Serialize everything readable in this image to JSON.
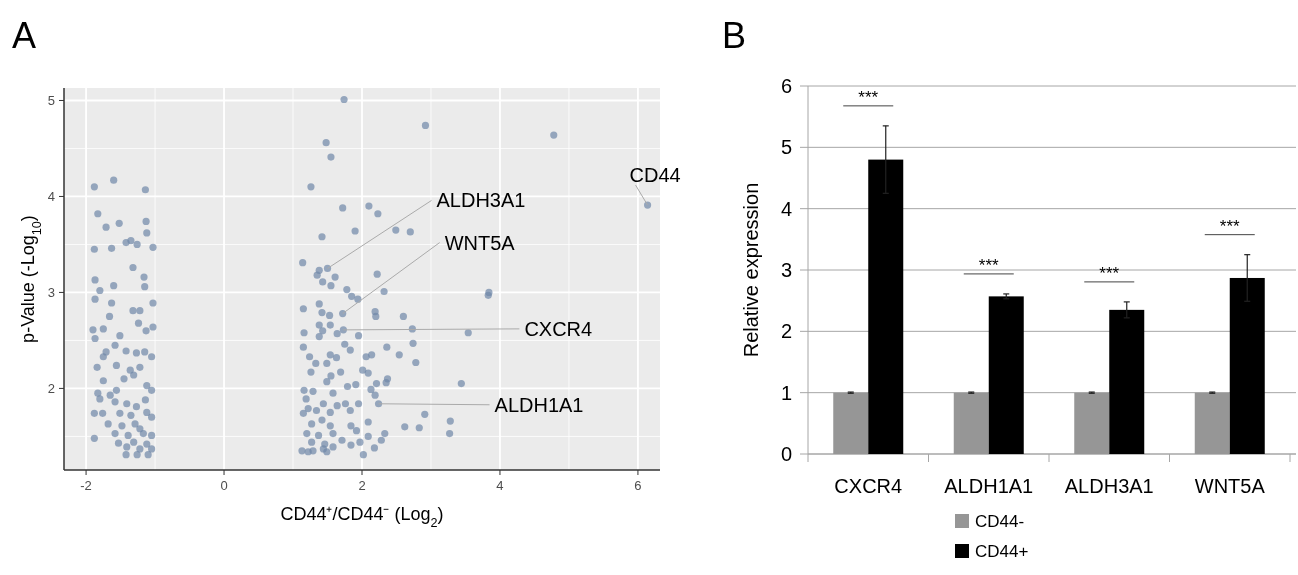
{
  "chart_data": [
    {
      "type": "scatter",
      "title": "A",
      "xlabel": "CD44⁺/CD44⁻ (Log$_{2}$)",
      "ylabel": "p-Value (-Log$_{10}$)",
      "color": "#6f87a8",
      "marker": "circle",
      "grid": true,
      "xlim": [
        -2.32,
        6.32
      ],
      "ylim": [
        1.15,
        5.13
      ],
      "xticks": [
        -2,
        0,
        2,
        4,
        6
      ],
      "yticks": [
        2,
        3,
        4,
        5
      ],
      "x": [
        -1.88,
        -1.6,
        -1.14,
        -1.83,
        -1.71,
        -1.52,
        -1.13,
        -1.12,
        -1.88,
        -1.63,
        -1.42,
        -1.35,
        -1.26,
        -1.03,
        -1.32,
        -1.87,
        -1.6,
        -1.16,
        -1.8,
        -1.15,
        -1.87,
        -1.63,
        -1.32,
        -1.22,
        -1.03,
        -1.66,
        -1.24,
        -1.9,
        -1.75,
        -1.13,
        -1.03,
        -1.87,
        -1.51,
        -1.58,
        -1.71,
        -1.42,
        -1.27,
        -1.15,
        -1.05,
        -1.75,
        -1.56,
        -1.84,
        -1.36,
        -1.22,
        -1.75,
        -1.45,
        -1.31,
        -1.12,
        -1.05,
        -1.83,
        -1.65,
        -1.56,
        -1.8,
        -1.58,
        -1.41,
        -1.14,
        -1.27,
        -1.88,
        -1.76,
        -1.51,
        -1.35,
        -1.12,
        -1.05,
        -1.68,
        -1.48,
        -1.29,
        -1.22,
        -1.17,
        -1.58,
        -1.88,
        -1.39,
        -1.05,
        -1.53,
        -1.31,
        -1.12,
        -1.41,
        -1.22,
        -1.05,
        -1.42,
        -1.26,
        -1.1,
        1.74,
        2.92,
        4.78,
        1.48,
        1.55,
        1.26,
        1.72,
        2.1,
        2.23,
        1.9,
        2.49,
        2.7,
        1.42,
        1.14,
        1.5,
        1.38,
        1.35,
        1.61,
        1.43,
        1.55,
        2.22,
        1.78,
        1.85,
        1.94,
        2.32,
        3.84,
        3.83,
        1.15,
        1.38,
        1.42,
        1.53,
        1.72,
        2.19,
        2.2,
        2.6,
        1.16,
        1.38,
        1.43,
        1.54,
        1.73,
        1.64,
        1.38,
        1.95,
        2.73,
        3.54,
        1.15,
        1.75,
        2.74,
        2.36,
        1.83,
        1.24,
        1.54,
        1.63,
        2.06,
        2.14,
        2.54,
        1.33,
        1.49,
        2.01,
        2.78,
        1.26,
        1.69,
        2.09,
        1.55,
        1.49,
        2.37,
        2.35,
        2.21,
        1.91,
        1.79,
        3.44,
        1.16,
        1.29,
        1.58,
        2.13,
        2.19,
        1.19,
        1.44,
        1.64,
        1.76,
        1.95,
        2.24,
        1.22,
        1.34,
        1.83,
        1.15,
        1.54,
        2.91,
        1.42,
        1.27,
        2.09,
        3.28,
        1.54,
        1.84,
        2.62,
        2.83,
        1.92,
        1.2,
        2.33,
        3.27,
        1.37,
        1.58,
        2.09,
        1.71,
        1.97,
        2.28,
        1.27,
        1.46,
        1.84,
        2.18,
        1.13,
        1.29,
        1.44,
        1.58,
        2.02,
        1.49,
        1.22,
        6.14
      ],
      "values": [
        4.1,
        4.17,
        4.07,
        3.82,
        3.68,
        3.72,
        3.74,
        3.62,
        3.45,
        3.46,
        3.52,
        3.54,
        3.5,
        3.47,
        3.26,
        3.13,
        3.07,
        3.16,
        3.02,
        3.06,
        2.93,
        2.89,
        2.81,
        2.81,
        2.89,
        2.75,
        2.68,
        2.61,
        2.62,
        2.6,
        2.64,
        2.52,
        2.55,
        2.45,
        2.38,
        2.39,
        2.37,
        2.38,
        2.33,
        2.33,
        2.24,
        2.22,
        2.19,
        2.22,
        2.08,
        2.1,
        2.14,
        2.03,
        1.98,
        1.95,
        1.93,
        1.98,
        1.89,
        1.86,
        1.84,
        1.88,
        1.81,
        1.74,
        1.74,
        1.74,
        1.72,
        1.75,
        1.7,
        1.63,
        1.61,
        1.63,
        1.58,
        1.53,
        1.53,
        1.48,
        1.51,
        1.51,
        1.43,
        1.44,
        1.42,
        1.39,
        1.37,
        1.37,
        1.31,
        1.31,
        1.31,
        5.01,
        4.74,
        4.64,
        4.56,
        4.41,
        4.1,
        3.88,
        3.9,
        3.82,
        3.64,
        3.65,
        3.63,
        3.58,
        3.31,
        3.25,
        3.23,
        3.18,
        3.16,
        3.11,
        3.07,
        3.19,
        3.03,
        2.96,
        2.93,
        3.01,
        3,
        2.97,
        2.83,
        2.88,
        2.79,
        2.76,
        2.78,
        2.8,
        2.75,
        2.75,
        2.58,
        2.66,
        2.6,
        2.66,
        2.61,
        2.57,
        2.54,
        2.55,
        2.62,
        2.58,
        2.43,
        2.46,
        2.47,
        2.43,
        2.4,
        2.33,
        2.35,
        2.32,
        2.33,
        2.35,
        2.35,
        2.26,
        2.26,
        2.19,
        2.27,
        2.17,
        2.17,
        2.16,
        2.13,
        2.07,
        2.1,
        2.06,
        2.05,
        2.04,
        2.02,
        2.05,
        1.98,
        1.97,
        1.95,
        1.99,
        1.93,
        1.89,
        1.84,
        1.82,
        1.84,
        1.84,
        1.84,
        1.79,
        1.77,
        1.77,
        1.74,
        1.75,
        1.73,
        1.67,
        1.63,
        1.65,
        1.66,
        1.61,
        1.61,
        1.6,
        1.59,
        1.56,
        1.53,
        1.53,
        1.53,
        1.51,
        1.53,
        1.5,
        1.46,
        1.44,
        1.46,
        1.44,
        1.42,
        1.41,
        1.38,
        1.35,
        1.35,
        1.37,
        1.39,
        1.31,
        1.34,
        1.34,
        3.91
      ],
      "annotations": [
        {
          "text": "CD44",
          "x": 6.14,
          "y": 3.91
        },
        {
          "text": "ALDH3A1",
          "x": 1.5,
          "y": 3.25
        },
        {
          "text": "WNT5A",
          "x": 1.72,
          "y": 2.78
        },
        {
          "text": "CXCR4",
          "x": 1.73,
          "y": 2.61
        },
        {
          "text": "ALDH1A1",
          "x": 2.24,
          "y": 1.84
        }
      ]
    },
    {
      "type": "bar",
      "title": "B",
      "ylabel": "Relative expression",
      "categories": [
        "CXCR4",
        "ALDH1A1",
        "ALDH3A1",
        "WNT5A"
      ],
      "ylim": [
        0,
        6
      ],
      "yticks": [
        0,
        1,
        2,
        3,
        4,
        5,
        6
      ],
      "grid": "y",
      "legend": "bottom",
      "series": [
        {
          "name": "CD44-",
          "color": "#969696",
          "values": [
            1,
            1,
            1,
            1
          ],
          "errors": [
            0.01,
            0.01,
            0.01,
            0.01
          ]
        },
        {
          "name": "CD44+",
          "color": "#000000",
          "values": [
            4.8,
            2.57,
            2.35,
            2.87
          ],
          "errors": [
            0.55,
            0.04,
            0.13,
            0.38
          ]
        }
      ],
      "annotations": [
        "***",
        "***",
        "***",
        "***"
      ]
    }
  ]
}
